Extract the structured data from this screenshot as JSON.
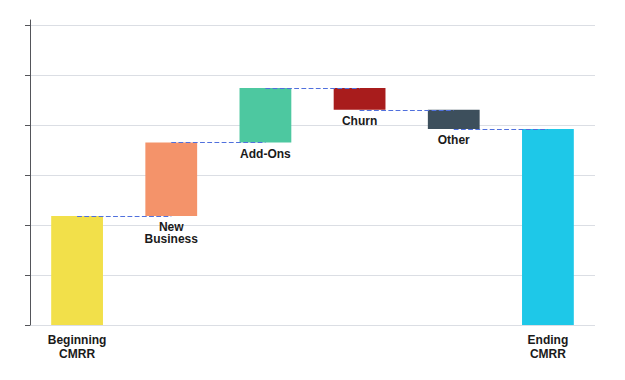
{
  "chart_data": {
    "type": "waterfall",
    "categories": [
      "Beginning\nCMRR",
      null,
      null,
      null,
      null,
      "Ending\nCMRR"
    ],
    "bases": [
      0,
      40,
      67,
      79,
      72,
      0
    ],
    "values": [
      40,
      27,
      20,
      8,
      7,
      72
    ],
    "colors": [
      "#F2E04A",
      "#F4936A",
      "#4DC8A0",
      "#A81C1C",
      "#3D4F5C",
      "#1EC8E8"
    ],
    "annotations": [
      null,
      "New\nBusiness",
      "Add-Ons",
      "Churn",
      "Other",
      null
    ],
    "connectors": [
      40,
      67,
      87,
      79,
      72
    ],
    "ylim": [
      0,
      112
    ],
    "yticks": [
      0,
      18.333333333333332,
      36.666666666666664,
      55,
      73.33333333333333,
      91.66666666666666,
      110
    ],
    "grid": true,
    "tick_labels": "x"
  }
}
